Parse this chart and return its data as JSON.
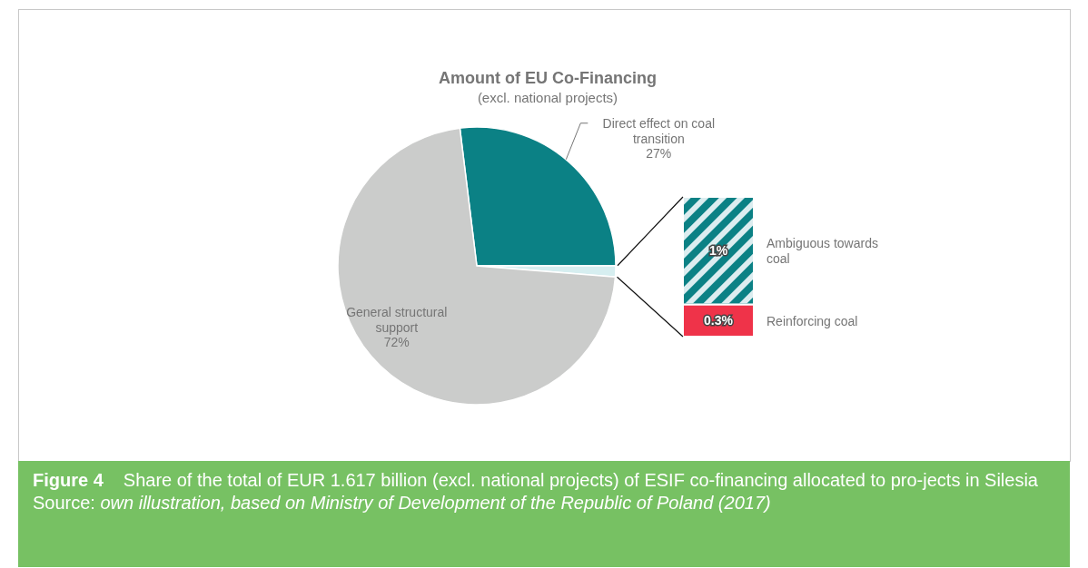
{
  "chart_data": [
    {
      "type": "pie",
      "title": "Amount of EU Co-Financing",
      "subtitle": "(excl. national projects)",
      "categories": [
        "Direct effect on coal transition",
        null,
        "General structural support"
      ],
      "values": [
        27,
        1.3,
        72
      ],
      "colors": [
        "#0b8185",
        "#d6eef0",
        "#cbcccb"
      ],
      "value_labels": [
        "27%",
        null,
        "72%"
      ],
      "annotations": [
        "Figure 4",
        "Share of the total of EUR 1.617 billion (excl. national projects) of ESIF co-financing allocated to pro-jects in Silesia",
        "Source:",
        "own illustration, based on Ministry of Development of the Republic of Poland (2017)"
      ]
    },
    {
      "type": "bar",
      "stacked": true,
      "categories": [
        null
      ],
      "series": [
        {
          "name": "Reinforcing coal",
          "color": "#ef3349",
          "values": [
            0.3
          ],
          "value_labels": [
            "0.3%"
          ]
        },
        {
          "name": "Ambiguous towards coal",
          "color": "#0b8185",
          "values": [
            1
          ],
          "value_labels": [
            "1%"
          ]
        }
      ]
    }
  ]
}
